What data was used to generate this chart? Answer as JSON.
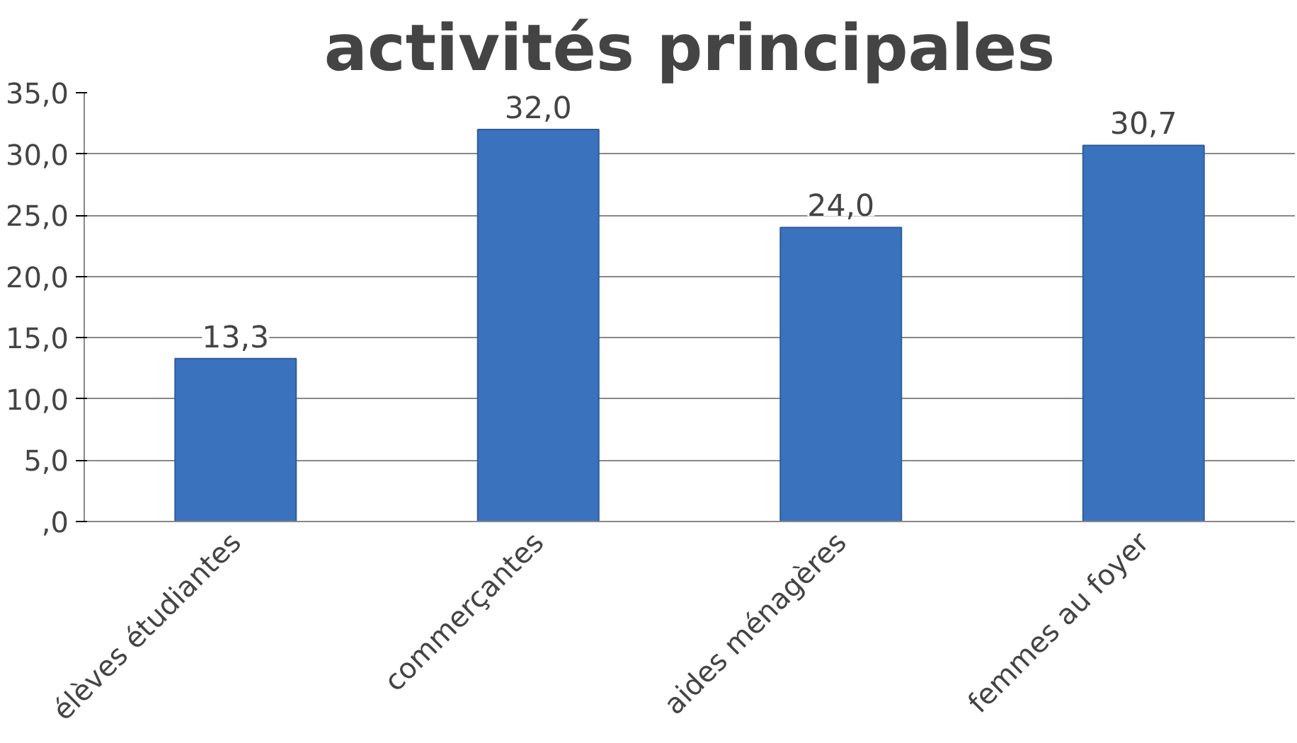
{
  "chart_data": {
    "type": "bar",
    "title": "activités principales",
    "categories": [
      "élèves étudiantes",
      "commerçantes",
      "aides ménagères",
      "femmes au foyer"
    ],
    "values": [
      13.3,
      32.0,
      24.0,
      30.7
    ],
    "value_labels": [
      "13,3",
      "32,0",
      "24,0",
      "30,7"
    ],
    "color": "#3b72be",
    "ylim": [
      0,
      35
    ],
    "yticks": [
      {
        "value": 0,
        "label": ",0"
      },
      {
        "value": 5,
        "label": "5,0"
      },
      {
        "value": 10,
        "label": "10,0"
      },
      {
        "value": 15,
        "label": "15,0"
      },
      {
        "value": 20,
        "label": "20,0"
      },
      {
        "value": 25,
        "label": "25,0"
      },
      {
        "value": 30,
        "label": "30,0"
      },
      {
        "value": 35,
        "label": "35,0"
      }
    ],
    "grid": "y"
  }
}
